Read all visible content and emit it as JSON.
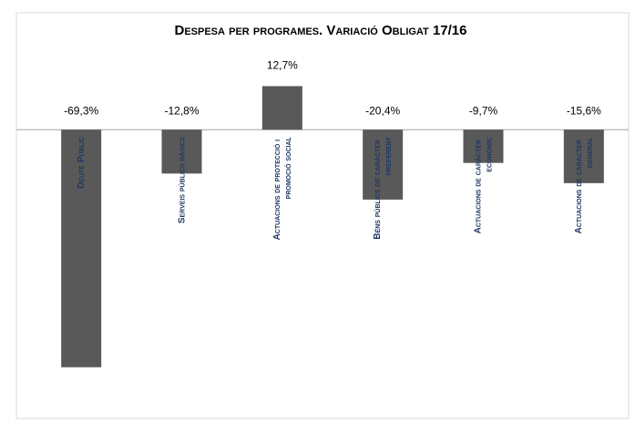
{
  "chart_data": {
    "type": "bar",
    "title": "Despesa per programes. Variació Obligat 17/16",
    "categories": [
      "Deute Públic",
      "Serveis públics bàsics",
      "Actuacions de protecció i promoció social",
      "Béns públics de caràcter preferent",
      "Actuacions de caràcter econòmic",
      "Actuacions de caràcter general"
    ],
    "values": [
      -69.3,
      -12.8,
      12.7,
      -20.4,
      -9.7,
      -15.6
    ],
    "value_labels": [
      "-69,3%",
      "-12,8%",
      "12,7%",
      "-20,4%",
      "-9,7%",
      "-15,6%"
    ],
    "color": "#595959",
    "label_color": "#1f3864",
    "ylim": [
      -80,
      20
    ]
  }
}
